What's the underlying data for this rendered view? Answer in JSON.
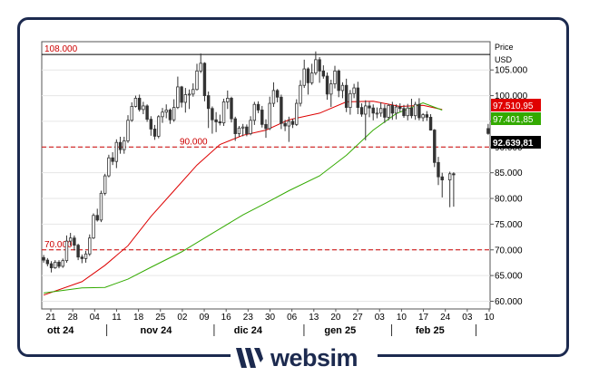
{
  "chart_data": {
    "type": "candlestick",
    "axis_title_line1": "Price",
    "axis_title_line2": "USD",
    "ylim": [
      58500,
      110500
    ],
    "y_ticks": [
      "105.000",
      "100.000",
      "95.000",
      "90.000",
      "85.000",
      "80.000",
      "75.000",
      "70.000",
      "65.000",
      "60.000"
    ],
    "y_tick_values": [
      105000,
      100000,
      95000,
      90000,
      85000,
      80000,
      75000,
      70000,
      65000,
      60000
    ],
    "x_day_ticks": [
      "21",
      "28",
      "04",
      "11",
      "18",
      "25",
      "02",
      "09",
      "16",
      "23",
      "30",
      "06",
      "13",
      "20",
      "27",
      "03",
      "10",
      "17",
      "24",
      "03",
      "10"
    ],
    "month_labels": [
      "ott 24",
      "nov 24",
      "dic 24",
      "gen 25",
      "feb 25"
    ],
    "reference_lines": [
      {
        "label": "108.000",
        "value": 108000,
        "color": "#000000",
        "style": "solid"
      },
      {
        "label": "90.000",
        "value": 90000,
        "color": "#cc0000",
        "style": "dashed"
      },
      {
        "label": "70.000",
        "value": 70000,
        "color": "#cc0000",
        "style": "dashed"
      }
    ],
    "price_tags": [
      {
        "label": "97.510,95",
        "value": 97510.95,
        "color": "#e00000"
      },
      {
        "label": "97.401,85",
        "value": 97401.85,
        "color": "#33aa00"
      },
      {
        "label": "92.639,81",
        "value": 92639.81,
        "color": "#000000"
      }
    ],
    "ma_red": [
      [
        0,
        61200
      ],
      [
        10,
        63800
      ],
      [
        16,
        67000
      ],
      [
        22,
        70800
      ],
      [
        28,
        76500
      ],
      [
        34,
        81500
      ],
      [
        40,
        86500
      ],
      [
        46,
        90500
      ],
      [
        52,
        92300
      ],
      [
        58,
        93300
      ],
      [
        64,
        95300
      ],
      [
        72,
        96600
      ],
      [
        79,
        98800
      ],
      [
        86,
        98900
      ],
      [
        93,
        97900
      ],
      [
        99,
        98100
      ],
      [
        104,
        97300
      ]
    ],
    "ma_green": [
      [
        0,
        61600
      ],
      [
        10,
        62600
      ],
      [
        16,
        62700
      ],
      [
        22,
        64300
      ],
      [
        28,
        66600
      ],
      [
        36,
        69600
      ],
      [
        44,
        73200
      ],
      [
        52,
        76800
      ],
      [
        58,
        79100
      ],
      [
        64,
        81500
      ],
      [
        72,
        84400
      ],
      [
        79,
        88400
      ],
      [
        86,
        93300
      ],
      [
        92,
        96500
      ],
      [
        99,
        98600
      ],
      [
        104,
        97200
      ]
    ],
    "candles": [
      [
        68500,
        68000,
        69000,
        67500
      ],
      [
        68000,
        67300,
        68400,
        66800
      ],
      [
        67300,
        66500,
        67800,
        65600
      ],
      [
        66500,
        67600,
        68000,
        66300
      ],
      [
        67600,
        66800,
        68000,
        66400
      ],
      [
        66800,
        67900,
        68300,
        66500
      ],
      [
        67900,
        71700,
        72800,
        67500
      ],
      [
        71700,
        72300,
        73300,
        70800
      ],
      [
        72300,
        70900,
        72800,
        69900
      ],
      [
        70900,
        68600,
        71200,
        68000
      ],
      [
        68600,
        68300,
        69100,
        67400
      ],
      [
        68300,
        69200,
        69800,
        67500
      ],
      [
        69200,
        72300,
        73000,
        68800
      ],
      [
        72300,
        76700,
        77100,
        72100
      ],
      [
        76700,
        75800,
        78000,
        75500
      ],
      [
        75800,
        81000,
        81500,
        75400
      ],
      [
        81000,
        84400,
        84800,
        80600
      ],
      [
        84400,
        87900,
        88500,
        84100
      ],
      [
        87900,
        87200,
        89000,
        86500
      ],
      [
        87200,
        90900,
        91500,
        85900
      ],
      [
        90900,
        89500,
        92000,
        88700
      ],
      [
        89500,
        91200,
        92000,
        88700
      ],
      [
        91200,
        95200,
        96200,
        90800
      ],
      [
        95200,
        97900,
        98700,
        94900
      ],
      [
        97900,
        99500,
        100000,
        97700
      ],
      [
        99500,
        97300,
        100200,
        96900
      ],
      [
        97300,
        98000,
        98800,
        96400
      ],
      [
        98000,
        95400,
        98300,
        94900
      ],
      [
        95400,
        93500,
        96000,
        92200
      ],
      [
        93500,
        92100,
        94300,
        91400
      ],
      [
        92100,
        95900,
        96200,
        91700
      ],
      [
        95900,
        96800,
        97600,
        94700
      ],
      [
        96800,
        97200,
        98300,
        95600
      ],
      [
        97200,
        95300,
        97500,
        94500
      ],
      [
        95300,
        97700,
        99300,
        94900
      ],
      [
        97700,
        101700,
        103700,
        97400
      ],
      [
        101700,
        98700,
        101900,
        97700
      ],
      [
        98700,
        100200,
        101500,
        96700
      ],
      [
        100200,
        100300,
        101200,
        97400
      ],
      [
        100300,
        101200,
        102400,
        99800
      ],
      [
        101200,
        104800,
        106200,
        101000
      ],
      [
        104800,
        106300,
        108200,
        104400
      ],
      [
        106300,
        100000,
        106500,
        98900
      ],
      [
        100000,
        97500,
        100800,
        93700
      ],
      [
        97500,
        95300,
        97900,
        92600
      ],
      [
        95300,
        94900,
        96800,
        92900
      ],
      [
        94900,
        94700,
        96300,
        94200
      ],
      [
        94700,
        98800,
        99400,
        94100
      ],
      [
        98800,
        99500,
        101000,
        97400
      ],
      [
        99500,
        95500,
        99800,
        94800
      ],
      [
        95500,
        92600,
        95900,
        91200
      ],
      [
        92600,
        93700,
        94100,
        92000
      ],
      [
        93700,
        93900,
        94500,
        92100
      ],
      [
        93900,
        92600,
        94400,
        92100
      ],
      [
        92600,
        95200,
        96000,
        92300
      ],
      [
        95200,
        98300,
        98800,
        94300
      ],
      [
        98300,
        97200,
        98900,
        96600
      ],
      [
        97200,
        94400,
        98000,
        93800
      ],
      [
        94400,
        93600,
        95400,
        91800
      ],
      [
        93600,
        98500,
        99800,
        93300
      ],
      [
        98500,
        101000,
        102600,
        97800
      ],
      [
        101000,
        99700,
        101300,
        98700
      ],
      [
        99700,
        94600,
        100200,
        93500
      ],
      [
        94600,
        94100,
        95300,
        93100
      ],
      [
        94100,
        95000,
        95900,
        91000
      ],
      [
        95000,
        94400,
        95500,
        93700
      ],
      [
        94400,
        98500,
        99300,
        94100
      ],
      [
        98500,
        102000,
        103000,
        97900
      ],
      [
        102000,
        105200,
        107000,
        101500
      ],
      [
        105200,
        102500,
        105500,
        100200
      ],
      [
        102500,
        104400,
        106200,
        102100
      ],
      [
        104400,
        107000,
        108600,
        104000
      ],
      [
        107000,
        104800,
        107500,
        102500
      ],
      [
        104800,
        103800,
        105900,
        103300
      ],
      [
        103800,
        100300,
        104500,
        99200
      ],
      [
        100300,
        102300,
        103100,
        97800
      ],
      [
        102300,
        104800,
        105800,
        101400
      ],
      [
        104800,
        101000,
        105100,
        99700
      ],
      [
        101000,
        102000,
        102600,
        99500
      ],
      [
        102000,
        97700,
        103300,
        96800
      ],
      [
        97700,
        100400,
        101100,
        96300
      ],
      [
        100400,
        101500,
        102300,
        99500
      ],
      [
        101500,
        97700,
        102700,
        96400
      ],
      [
        97700,
        96400,
        98500,
        95900
      ],
      [
        96400,
        98000,
        99100,
        91300
      ],
      [
        98000,
        97600,
        98800,
        95800
      ],
      [
        97600,
        96600,
        98300,
        95200
      ],
      [
        96600,
        96600,
        97700,
        95600
      ],
      [
        96600,
        97500,
        98700,
        95900
      ],
      [
        97500,
        95800,
        98300,
        94700
      ],
      [
        95800,
        98100,
        98400,
        95200
      ],
      [
        98100,
        96600,
        98800,
        95300
      ],
      [
        96600,
        97800,
        98300,
        95400
      ],
      [
        97800,
        97500,
        98500,
        96800
      ],
      [
        97500,
        96100,
        98200,
        95700
      ],
      [
        96100,
        97600,
        98400,
        95200
      ],
      [
        97600,
        96100,
        99400,
        95600
      ],
      [
        96100,
        98300,
        98800,
        95300
      ],
      [
        98300,
        95700,
        99500,
        95200
      ],
      [
        95700,
        96300,
        96600,
        95000
      ],
      [
        96300,
        95800,
        97000,
        95100
      ],
      [
        95800,
        93300,
        96400,
        93200
      ],
      [
        93300,
        87000,
        93500,
        86100
      ],
      [
        87000,
        84200,
        88100,
        82600
      ],
      [
        84200,
        83600,
        85000,
        80200
      ],
      [
        null,
        null,
        null,
        null
      ],
      [
        83600,
        84800,
        85200,
        78300
      ],
      [
        84800,
        84600,
        85100,
        78400
      ],
      [
        null,
        null,
        null,
        null
      ],
      [
        null,
        null,
        null,
        null
      ],
      [
        null,
        null,
        null,
        null
      ],
      [
        null,
        null,
        null,
        null
      ],
      [
        null,
        null,
        null,
        null
      ],
      [
        null,
        null,
        null,
        null
      ],
      [
        null,
        null,
        null,
        null
      ],
      [
        null,
        null,
        null,
        null
      ],
      [
        93600,
        92640,
        94500,
        92400
      ]
    ]
  },
  "brand": {
    "name": "websim"
  }
}
